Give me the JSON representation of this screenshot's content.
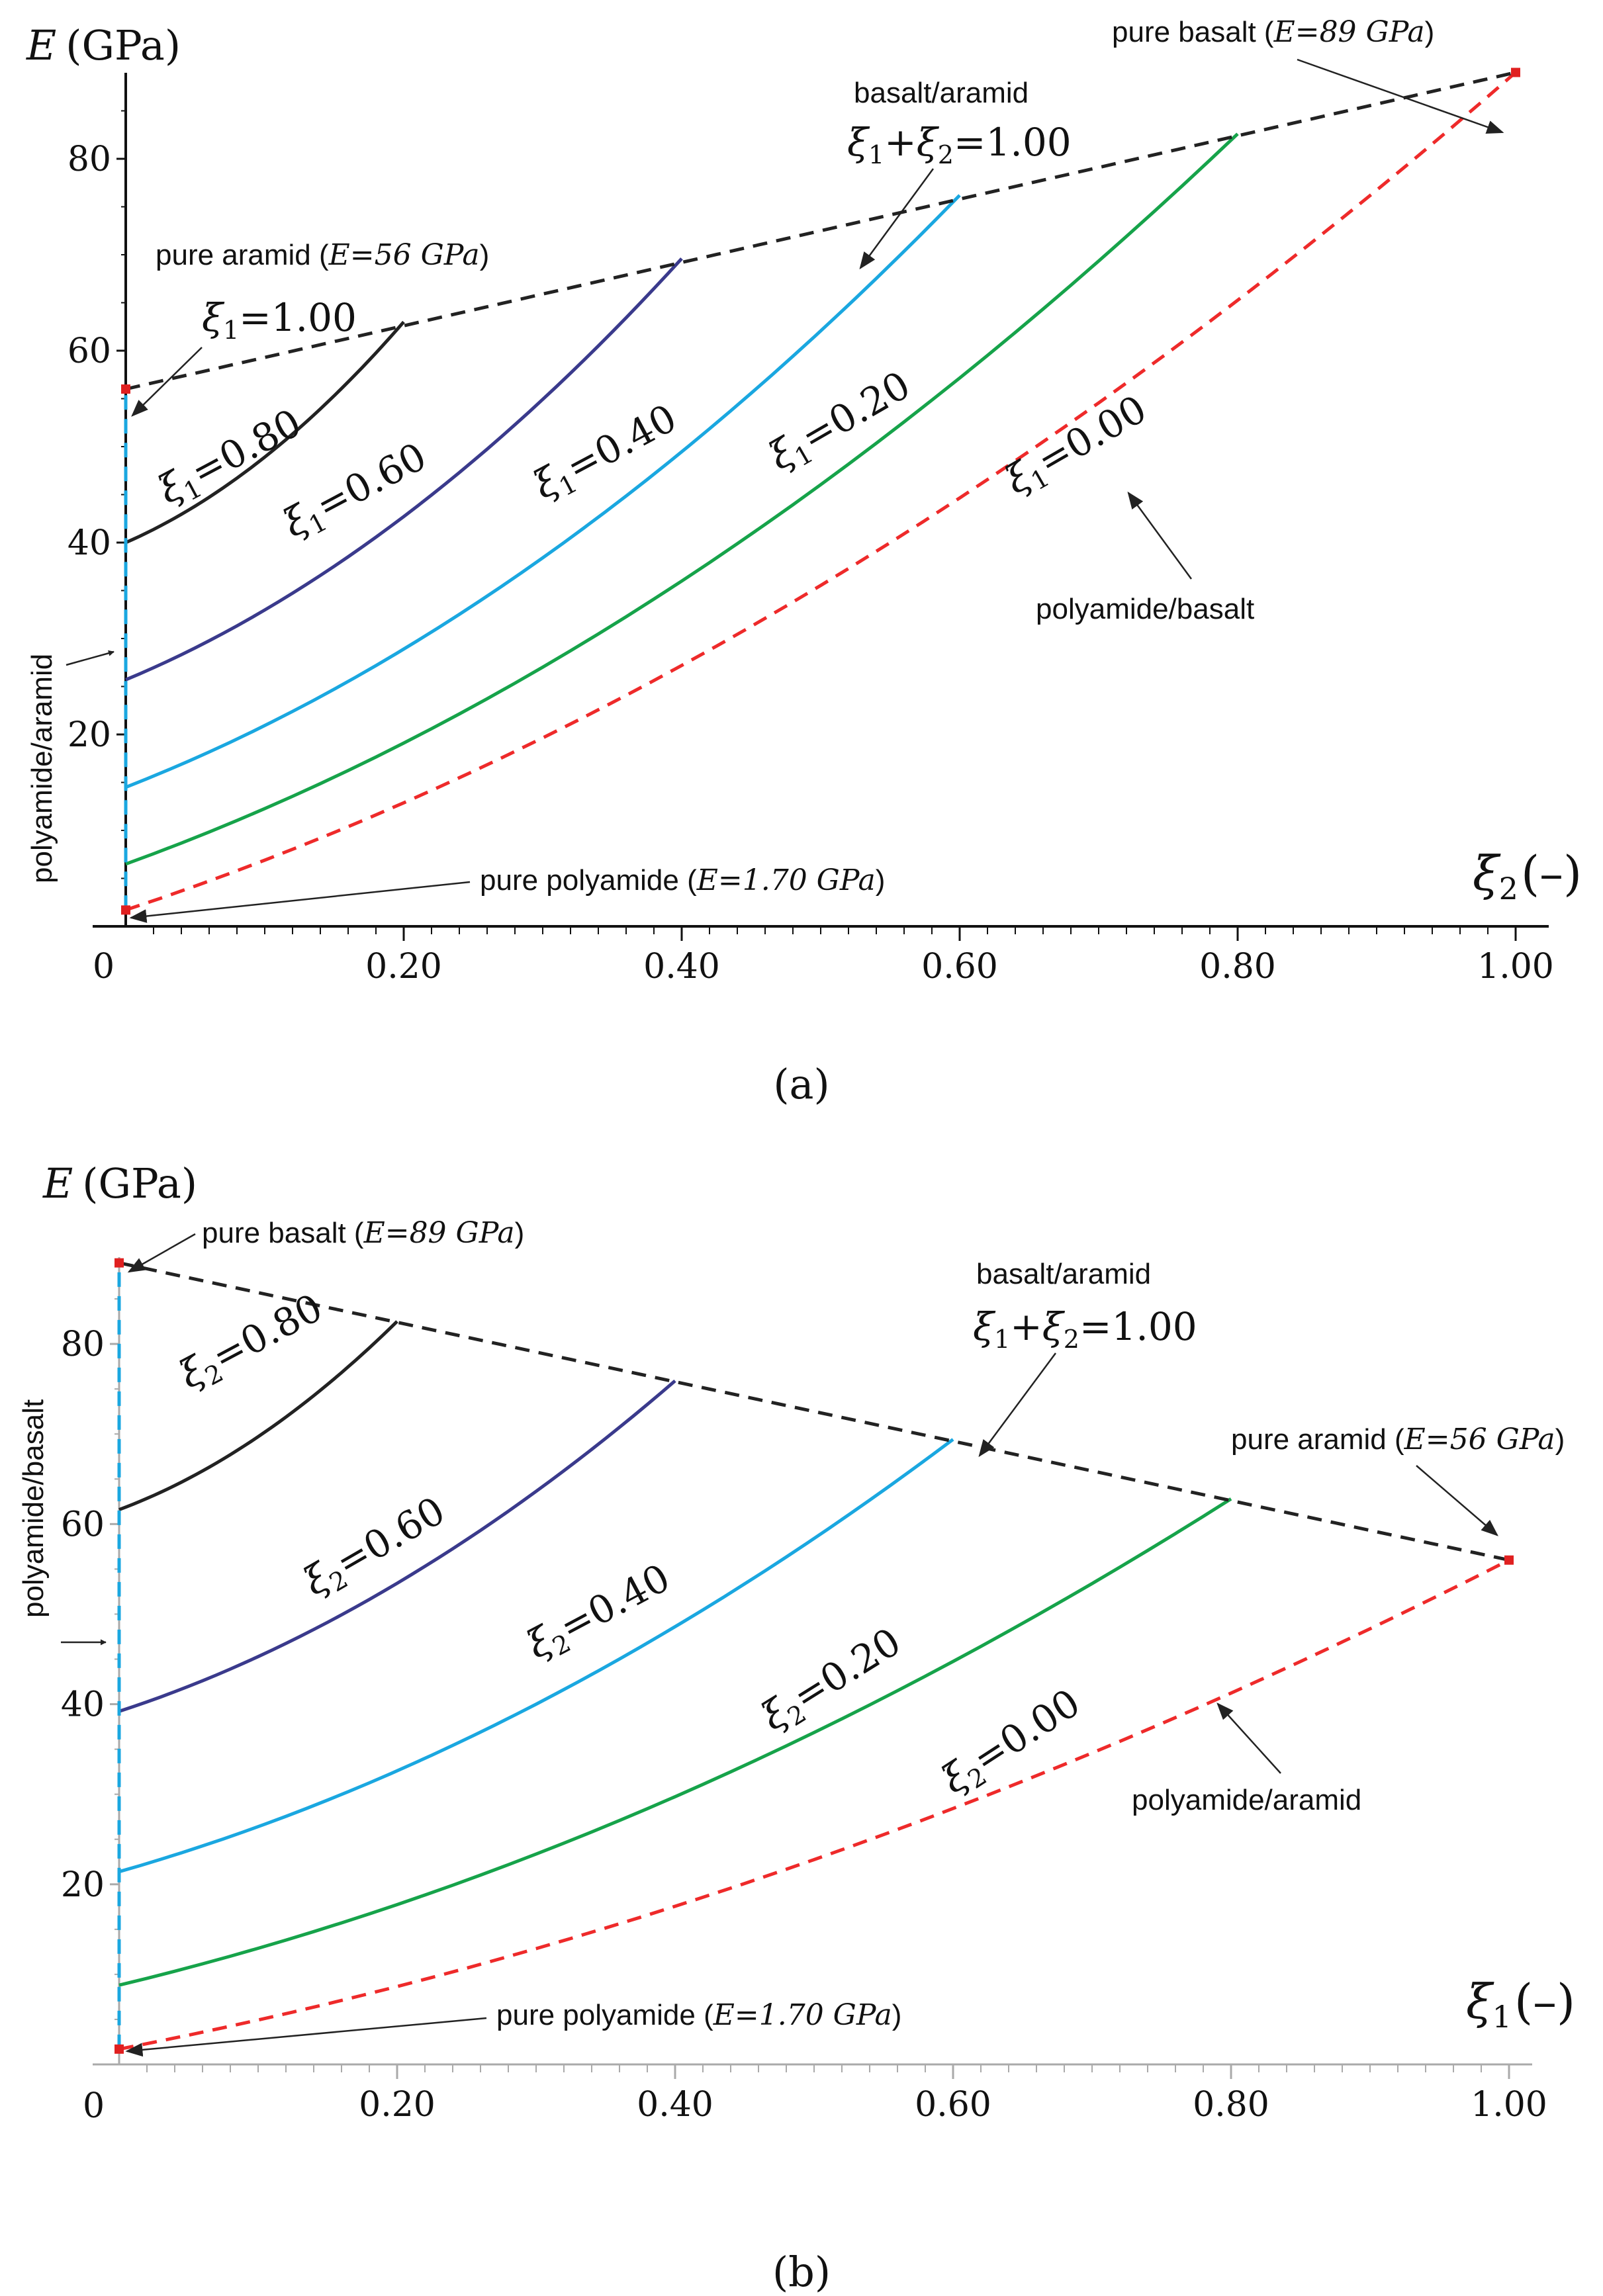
{
  "chart_data": [
    {
      "type": "line",
      "panel_label": "(a)",
      "ylabel_sym": "E",
      "ylabel_unit": "(GPa)",
      "xlabel_sym": "ξ",
      "xlabel_sub": "2",
      "xlabel_unit": "(–)",
      "origin_label": "0",
      "xlim": [
        0,
        1
      ],
      "ylim": [
        0,
        90
      ],
      "x_ticks": [
        0.2,
        0.4,
        0.6,
        0.8,
        1.0
      ],
      "x_tick_labels": [
        "0.20",
        "0.40",
        "0.60",
        "0.80",
        "1.00"
      ],
      "y_ticks": [
        20,
        40,
        60,
        80
      ],
      "y_tick_labels": [
        "20",
        "40",
        "60",
        "80"
      ],
      "series": [
        {
          "name": "ξ1=0.80",
          "sym": "ξ",
          "sub": "1",
          "val": "=0.80",
          "color": "#222222",
          "dash": false,
          "x": [
            0,
            0.2
          ],
          "y": [
            40,
            63
          ]
        },
        {
          "name": "ξ1=0.60",
          "sym": "ξ",
          "sub": "1",
          "val": "=0.60",
          "color": "#3a3a8c",
          "dash": false,
          "x": [
            0,
            0.4
          ],
          "y": [
            25.7,
            69.6
          ]
        },
        {
          "name": "ξ1=0.40",
          "sym": "ξ",
          "sub": "1",
          "val": "=0.40",
          "color": "#1aa7e0",
          "dash": false,
          "x": [
            0,
            0.6
          ],
          "y": [
            14.5,
            76.2
          ]
        },
        {
          "name": "ξ1=0.20",
          "sym": "ξ",
          "sub": "1",
          "val": "=0.20",
          "color": "#16a34a",
          "dash": false,
          "x": [
            0,
            0.8
          ],
          "y": [
            6.5,
            82.6
          ]
        },
        {
          "name": "ξ1=0.00",
          "sym": "ξ",
          "sub": "1",
          "val": "=0.00",
          "color": "#ee2a2a",
          "dash": true,
          "x": [
            0,
            1.0
          ],
          "y": [
            1.7,
            89
          ]
        },
        {
          "name": "basalt/aramid ξ1+ξ2=1.00",
          "color": "#222222",
          "dash": true,
          "x": [
            0,
            1.0
          ],
          "y": [
            56,
            89
          ]
        },
        {
          "name": "polyamide/aramid",
          "color": "#1aa7e0",
          "dash": true,
          "x": [
            0,
            0
          ],
          "y": [
            1.7,
            56
          ]
        }
      ],
      "points": [
        {
          "name": "pure aramid",
          "x": 0,
          "y": 56
        },
        {
          "name": "pure basalt",
          "x": 1,
          "y": 89
        },
        {
          "name": "pure polyamide",
          "x": 0,
          "y": 1.7
        }
      ],
      "annotations": {
        "top_point": {
          "prefix": "pure basalt (",
          "italic": "E=89 GPa",
          "suffix": ")"
        },
        "mid_point": {
          "prefix": "pure aramid (",
          "italic": "E=56 GPa",
          "suffix": ")"
        },
        "bottom_point": {
          "prefix": "pure polyamide (",
          "italic": "E=1.70 GPa",
          "suffix": ")"
        },
        "xi_one": {
          "sym": "ξ",
          "sub": "1",
          "val": "=1.00"
        },
        "sum_name": "basalt/aramid",
        "sum_sym1": "ξ",
        "sum_sub1": "1",
        "sum_plus": "+",
        "sum_sym2": "ξ",
        "sum_sub2": "2",
        "sum_val": "=1.00",
        "bottom_curve_label": "polyamide/basalt",
        "vertical_label": "polyamide/aramid"
      }
    },
    {
      "type": "line",
      "panel_label": "(b)",
      "ylabel_sym": "E",
      "ylabel_unit": "(GPa)",
      "xlabel_sym": "ξ",
      "xlabel_sub": "1",
      "xlabel_unit": "(–)",
      "origin_label": "0",
      "xlim": [
        0,
        1
      ],
      "ylim": [
        0,
        90
      ],
      "x_ticks": [
        0.2,
        0.4,
        0.6,
        0.8,
        1.0
      ],
      "x_tick_labels": [
        "0.20",
        "0.40",
        "0.60",
        "0.80",
        "1.00"
      ],
      "y_ticks": [
        20,
        40,
        60,
        80
      ],
      "y_tick_labels": [
        "20",
        "40",
        "60",
        "80"
      ],
      "series": [
        {
          "name": "ξ2=0.80",
          "sym": "ξ",
          "sub": "2",
          "val": "=0.80",
          "color": "#222222",
          "dash": false,
          "x": [
            0,
            0.2
          ],
          "y": [
            61.6,
            82.5
          ]
        },
        {
          "name": "ξ2=0.60",
          "sym": "ξ",
          "sub": "2",
          "val": "=0.60",
          "color": "#3a3a8c",
          "dash": false,
          "x": [
            0,
            0.4
          ],
          "y": [
            39.2,
            75.9
          ]
        },
        {
          "name": "ξ2=0.40",
          "sym": "ξ",
          "sub": "2",
          "val": "=0.40",
          "color": "#1aa7e0",
          "dash": false,
          "x": [
            0,
            0.6
          ],
          "y": [
            21.4,
            69.4
          ]
        },
        {
          "name": "ξ2=0.20",
          "sym": "ξ",
          "sub": "2",
          "val": "=0.20",
          "color": "#16a34a",
          "dash": false,
          "x": [
            0,
            0.8
          ],
          "y": [
            8.8,
            62.8
          ]
        },
        {
          "name": "ξ2=0.00",
          "sym": "ξ",
          "sub": "2",
          "val": "=0.00",
          "color": "#ee2a2a",
          "dash": true,
          "x": [
            0,
            1.0
          ],
          "y": [
            1.7,
            56
          ]
        },
        {
          "name": "basalt/aramid ξ1+ξ2=1.00",
          "color": "#222222",
          "dash": true,
          "x": [
            0,
            1.0
          ],
          "y": [
            89,
            56
          ]
        },
        {
          "name": "polyamide/basalt",
          "color": "#1aa7e0",
          "dash": true,
          "x": [
            0,
            0
          ],
          "y": [
            1.7,
            89
          ]
        }
      ],
      "points": [
        {
          "name": "pure basalt",
          "x": 0,
          "y": 89
        },
        {
          "name": "pure aramid",
          "x": 1,
          "y": 56
        },
        {
          "name": "pure polyamide",
          "x": 0,
          "y": 1.7
        }
      ],
      "annotations": {
        "top_point": {
          "prefix": "pure basalt (",
          "italic": "E=89 GPa",
          "suffix": ")"
        },
        "mid_point": {
          "prefix": "pure aramid (",
          "italic": "E=56 GPa",
          "suffix": ")"
        },
        "bottom_point": {
          "prefix": "pure polyamide (",
          "italic": "E=1.70 GPa",
          "suffix": ")"
        },
        "sum_name": "basalt/aramid",
        "sum_sym1": "ξ",
        "sum_sub1": "1",
        "sum_plus": "+",
        "sum_sym2": "ξ",
        "sum_sub2": "2",
        "sum_val": "=1.00",
        "bottom_curve_label": "polyamide/aramid",
        "vertical_label": "polyamide/basalt"
      }
    }
  ]
}
